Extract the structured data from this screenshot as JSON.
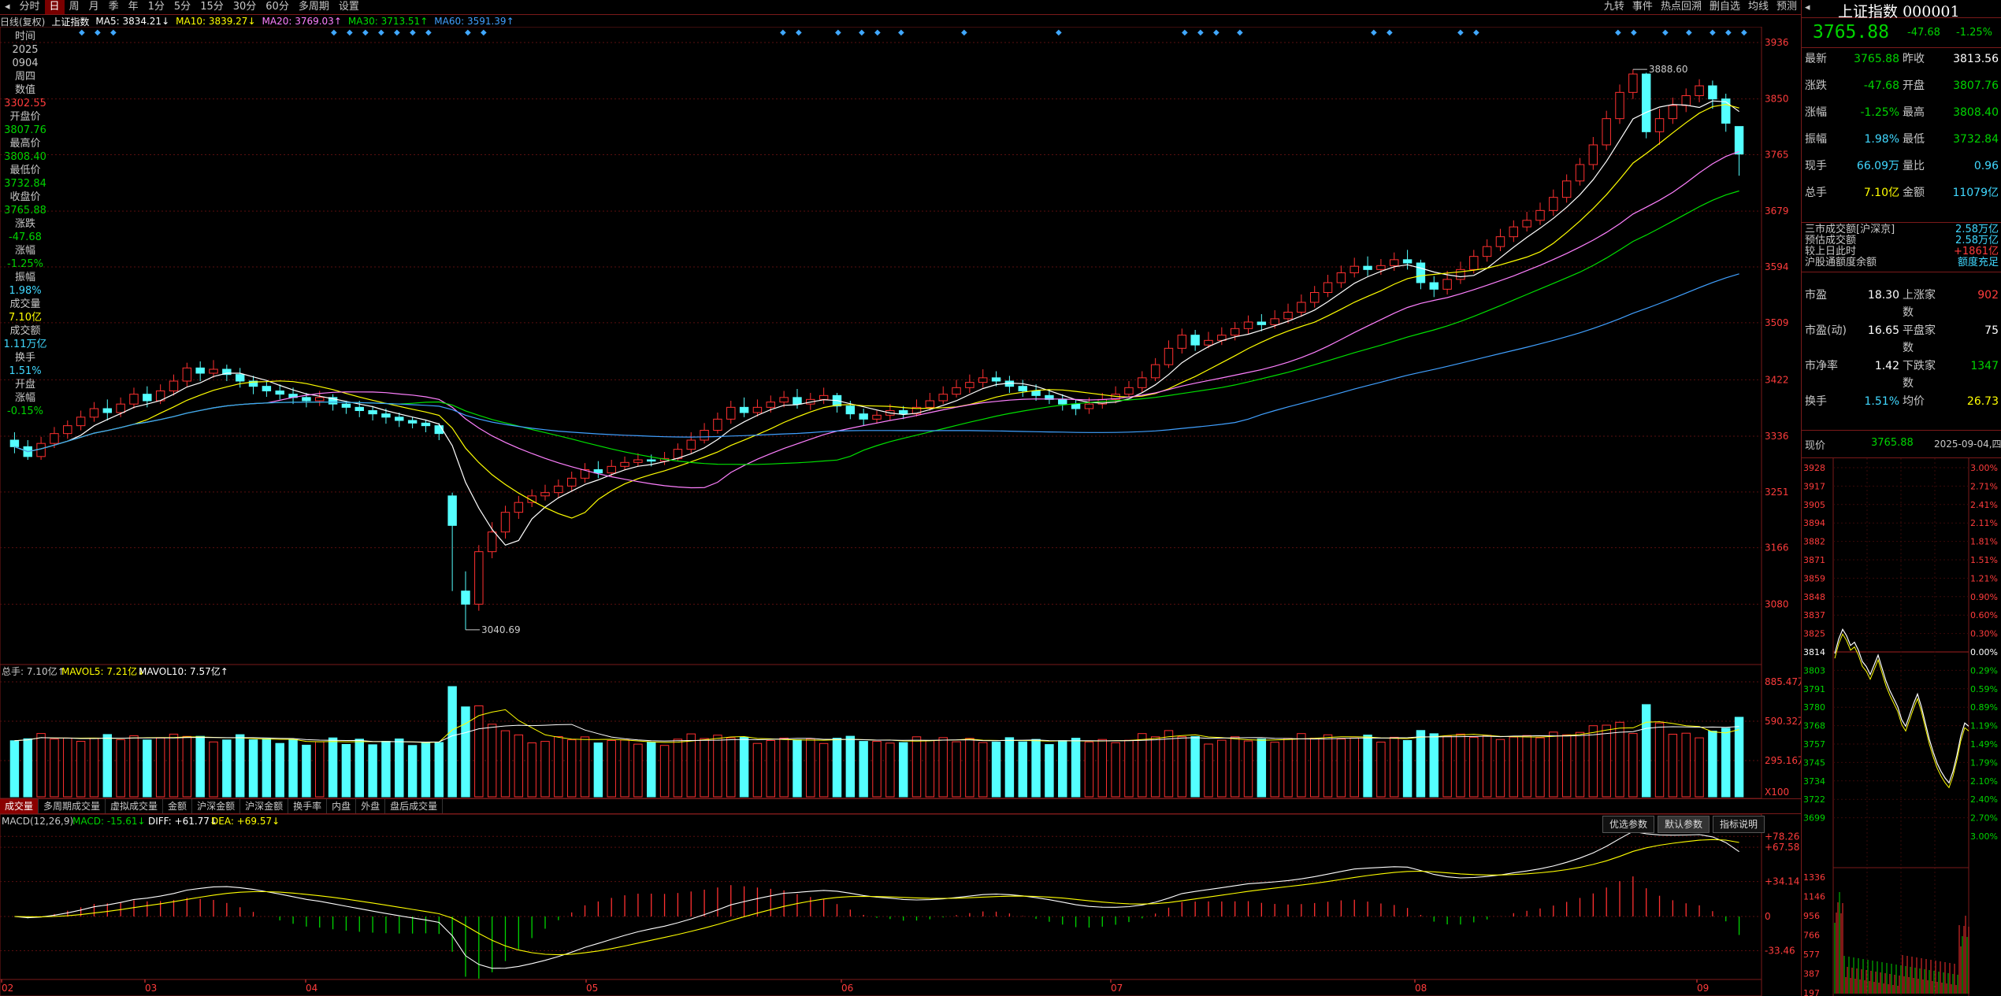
{
  "toolbar": {
    "items": [
      "分时",
      "日",
      "周",
      "月",
      "季",
      "年",
      "1分",
      "5分",
      "15分",
      "30分",
      "60分",
      "多周期",
      "设置"
    ],
    "active_index": 1,
    "right_items": [
      "九转",
      "事件",
      "热点回溯",
      "删自选",
      "均线",
      "预测"
    ]
  },
  "chart_title": {
    "period": "日线(复权)",
    "name": "上证指数",
    "ma": [
      {
        "label": "MA5: 3834.21",
        "arrow": "↓",
        "color": "#ffffff"
      },
      {
        "label": "MA10: 3839.27",
        "arrow": "↓",
        "color": "#ffff00"
      },
      {
        "label": "MA20: 3769.03",
        "arrow": "↑",
        "color": "#ff80ff"
      },
      {
        "label": "MA30: 3713.51",
        "arrow": "↑",
        "color": "#00e000"
      },
      {
        "label": "MA60: 3591.39",
        "arrow": "↑",
        "color": "#40a0ff"
      }
    ]
  },
  "left_info": [
    {
      "t": "时间",
      "c": "#c8c8c8"
    },
    {
      "t": "2025",
      "c": "#c8c8c8"
    },
    {
      "t": "0904",
      "c": "#c8c8c8"
    },
    {
      "t": "周四",
      "c": "#c8c8c8"
    },
    {
      "t": "数值",
      "c": "#c8c8c8"
    },
    {
      "t": "3302.55",
      "c": "#ff3c3c"
    },
    {
      "t": "开盘价",
      "c": "#c8c8c8"
    },
    {
      "t": "3807.76",
      "c": "#00d400"
    },
    {
      "t": "最高价",
      "c": "#c8c8c8"
    },
    {
      "t": "3808.40",
      "c": "#00d400"
    },
    {
      "t": "最低价",
      "c": "#c8c8c8"
    },
    {
      "t": "3732.84",
      "c": "#00d400"
    },
    {
      "t": "收盘价",
      "c": "#c8c8c8"
    },
    {
      "t": "3765.88",
      "c": "#00d400"
    },
    {
      "t": "涨跌",
      "c": "#c8c8c8"
    },
    {
      "t": "-47.68",
      "c": "#00d400"
    },
    {
      "t": "涨幅",
      "c": "#c8c8c8"
    },
    {
      "t": "-1.25%",
      "c": "#00d400"
    },
    {
      "t": "振幅",
      "c": "#c8c8c8"
    },
    {
      "t": "1.98%",
      "c": "#40d8ff"
    },
    {
      "t": "成交量",
      "c": "#c8c8c8"
    },
    {
      "t": "7.10亿",
      "c": "#ffff00"
    },
    {
      "t": "成交额",
      "c": "#c8c8c8"
    },
    {
      "t": "1.11万亿",
      "c": "#40d8ff"
    },
    {
      "t": "换手",
      "c": "#c8c8c8"
    },
    {
      "t": "1.51%",
      "c": "#40d8ff"
    },
    {
      "t": "开盘",
      "c": "#c8c8c8"
    },
    {
      "t": "涨幅",
      "c": "#c8c8c8"
    },
    {
      "t": "-0.15%",
      "c": "#00d400"
    }
  ],
  "price_axis": [
    "3936",
    "3850",
    "3765",
    "3679",
    "3594",
    "3509",
    "3422",
    "3336",
    "3251",
    "3166",
    "3080"
  ],
  "annotations": {
    "high": "3888.60",
    "low": "3040.69"
  },
  "volume": {
    "title": "总手: 7.10亿↑",
    "mavol5": "MAVOL5: 7.21亿↓",
    "mavol10": "MAVOL10: 7.57亿↑",
    "axis": [
      "885.47万",
      "590.32万",
      "295.16万",
      "X100"
    ]
  },
  "indicator_tabs": [
    "成交量",
    "多周期成交量",
    "虚拟成交量",
    "金额",
    "沪深金额",
    "沪深金额",
    "换手率",
    "内盘",
    "外盘",
    "盘后成交量"
  ],
  "macd": {
    "title": "MACD(12,26,9)",
    "macd": "MACD: -15.61↓",
    "diff": "DIFF: +61.77↓",
    "dea": "DEA: +69.57↓",
    "axis": [
      "+78.26",
      "+67.58",
      "+34.14",
      "0",
      "-33.46"
    ],
    "buttons": [
      "优选参数",
      "默认参数",
      "指标说明"
    ]
  },
  "x_labels": [
    "02",
    "03",
    "04",
    "05",
    "06",
    "07",
    "08",
    "09"
  ],
  "right_panel": {
    "title": "上证指数",
    "code": "000001",
    "price": "3765.88",
    "change": "-47.68",
    "pct": "-1.25%",
    "rows": [
      {
        "k": "最新",
        "v1": "3765.88",
        "c1": "#00d400",
        "k2": "昨收",
        "v2": "3813.56",
        "c2": "#ffffff"
      },
      {
        "k": "涨跌",
        "v1": "-47.68",
        "c1": "#00d400",
        "k2": "开盘",
        "v2": "3807.76",
        "c2": "#00d400"
      },
      {
        "k": "涨幅",
        "v1": "-1.25%",
        "c1": "#00d400",
        "k2": "最高",
        "v2": "3808.40",
        "c2": "#00d400"
      },
      {
        "k": "振幅",
        "v1": "1.98%",
        "c1": "#40d8ff",
        "k2": "最低",
        "v2": "3732.84",
        "c2": "#00d400"
      },
      {
        "k": "现手",
        "v1": "66.09万",
        "c1": "#40d8ff",
        "k2": "量比",
        "v2": "0.96",
        "c2": "#40d8ff"
      },
      {
        "k": "总手",
        "v1": "7.10亿",
        "c1": "#ffff00",
        "k2": "金额",
        "v2": "11079亿",
        "c2": "#40d8ff"
      }
    ],
    "turnover": [
      {
        "k": "三市成交额[沪深京]",
        "v": "2.58万亿",
        "c": "#40d8ff"
      },
      {
        "k": "预估成交额",
        "v": "2.58万亿",
        "c": "#40d8ff"
      },
      {
        "k": "较上日此时",
        "v": "+1861亿",
        "c": "#ff3c3c"
      },
      {
        "k": "沪股通额度余额",
        "v": "额度充足",
        "c": "#40d8ff"
      }
    ],
    "rows2": [
      {
        "k": "市盈",
        "v1": "18.30",
        "k2": "上涨家数",
        "v2": "902",
        "c2": "#ff3c3c"
      },
      {
        "k": "市盈(动)",
        "v1": "16.65",
        "k2": "平盘家数",
        "v2": "75",
        "c2": "#ffffff"
      },
      {
        "k": "市净率",
        "v1": "1.42",
        "k2": "下跌家数",
        "v2": "1347",
        "c2": "#00d400"
      },
      {
        "k": "换手",
        "v1": "1.51%",
        "k2": "均价",
        "v2": "26.73",
        "c2": "#ffff00"
      }
    ],
    "mini": {
      "label": "现价",
      "price": "3765.88",
      "date": "2025-09-04,四",
      "left_axis": [
        "3928",
        "3917",
        "3905",
        "3894",
        "3882",
        "3871",
        "3859",
        "3848",
        "3837",
        "3825",
        "3814",
        "3803",
        "3791",
        "3780",
        "3768",
        "3757",
        "3745",
        "3734",
        "3722",
        "3699"
      ],
      "right_axis": [
        "3.00%",
        "2.71%",
        "2.41%",
        "2.11%",
        "1.81%",
        "1.51%",
        "1.21%",
        "0.90%",
        "0.60%",
        "0.30%",
        "0.00%",
        "0.29%",
        "0.59%",
        "0.89%",
        "1.19%",
        "1.49%",
        "1.79%",
        "2.10%",
        "2.40%",
        "2.70%",
        "3.00%"
      ],
      "vol_axis": [
        "1336",
        "1146",
        "956",
        "766",
        "577",
        "387",
        "197"
      ]
    }
  },
  "chart_data": {
    "type": "candlestick",
    "title": "上证指数",
    "ylim": [
      3000,
      3960
    ],
    "x_months": [
      "02",
      "03",
      "04",
      "05",
      "06",
      "07",
      "08",
      "09"
    ],
    "candles": [
      [
        3330,
        3320,
        3342,
        3310
      ],
      [
        3320,
        3305,
        3330,
        3300
      ],
      [
        3305,
        3325,
        3335,
        3300
      ],
      [
        3325,
        3340,
        3350,
        3318
      ],
      [
        3340,
        3352,
        3360,
        3332
      ],
      [
        3352,
        3365,
        3375,
        3345
      ],
      [
        3365,
        3378,
        3388,
        3358
      ],
      [
        3378,
        3372,
        3392,
        3360
      ],
      [
        3372,
        3385,
        3395,
        3365
      ],
      [
        3385,
        3400,
        3410,
        3378
      ],
      [
        3400,
        3390,
        3412,
        3380
      ],
      [
        3390,
        3405,
        3415,
        3385
      ],
      [
        3405,
        3420,
        3430,
        3398
      ],
      [
        3420,
        3440,
        3448,
        3412
      ],
      [
        3440,
        3432,
        3450,
        3420
      ],
      [
        3432,
        3438,
        3452,
        3425
      ],
      [
        3438,
        3430,
        3445,
        3420
      ],
      [
        3430,
        3420,
        3440,
        3410
      ],
      [
        3420,
        3412,
        3428,
        3400
      ],
      [
        3412,
        3405,
        3420,
        3396
      ],
      [
        3405,
        3400,
        3415,
        3392
      ],
      [
        3400,
        3395,
        3410,
        3385
      ],
      [
        3395,
        3390,
        3402,
        3380
      ],
      [
        3390,
        3395,
        3405,
        3382
      ],
      [
        3395,
        3385,
        3400,
        3375
      ],
      [
        3385,
        3380,
        3390,
        3370
      ],
      [
        3380,
        3375,
        3390,
        3365
      ],
      [
        3375,
        3370,
        3382,
        3360
      ],
      [
        3370,
        3365,
        3378,
        3355
      ],
      [
        3365,
        3360,
        3372,
        3350
      ],
      [
        3360,
        3356,
        3365,
        3348
      ],
      [
        3356,
        3352,
        3360,
        3342
      ],
      [
        3352,
        3340,
        3356,
        3330
      ],
      [
        3245,
        3200,
        3250,
        3100
      ],
      [
        3100,
        3080,
        3130,
        3041
      ],
      [
        3080,
        3160,
        3170,
        3070
      ],
      [
        3160,
        3190,
        3205,
        3150
      ],
      [
        3190,
        3220,
        3230,
        3180
      ],
      [
        3220,
        3235,
        3245,
        3210
      ],
      [
        3235,
        3245,
        3255,
        3228
      ],
      [
        3245,
        3250,
        3262,
        3238
      ],
      [
        3250,
        3260,
        3270,
        3242
      ],
      [
        3260,
        3272,
        3282,
        3252
      ],
      [
        3272,
        3285,
        3295,
        3265
      ],
      [
        3285,
        3280,
        3298,
        3272
      ],
      [
        3280,
        3290,
        3300,
        3275
      ],
      [
        3290,
        3296,
        3305,
        3285
      ],
      [
        3296,
        3300,
        3310,
        3290
      ],
      [
        3300,
        3298,
        3308,
        3290
      ],
      [
        3298,
        3302,
        3312,
        3292
      ],
      [
        3302,
        3316,
        3325,
        3298
      ],
      [
        3316,
        3330,
        3342,
        3310
      ],
      [
        3330,
        3345,
        3356,
        3325
      ],
      [
        3345,
        3362,
        3372,
        3340
      ],
      [
        3362,
        3380,
        3390,
        3355
      ],
      [
        3380,
        3372,
        3395,
        3365
      ],
      [
        3372,
        3380,
        3392,
        3366
      ],
      [
        3380,
        3388,
        3398,
        3372
      ],
      [
        3388,
        3395,
        3405,
        3380
      ],
      [
        3395,
        3385,
        3408,
        3378
      ],
      [
        3385,
        3392,
        3402,
        3376
      ],
      [
        3392,
        3398,
        3410,
        3385
      ],
      [
        3398,
        3382,
        3402,
        3372
      ],
      [
        3382,
        3370,
        3390,
        3362
      ],
      [
        3370,
        3362,
        3378,
        3352
      ],
      [
        3362,
        3368,
        3375,
        3355
      ],
      [
        3368,
        3375,
        3385,
        3360
      ],
      [
        3375,
        3370,
        3382,
        3362
      ],
      [
        3370,
        3380,
        3392,
        3366
      ],
      [
        3380,
        3390,
        3402,
        3375
      ],
      [
        3390,
        3400,
        3412,
        3385
      ],
      [
        3400,
        3410,
        3422,
        3395
      ],
      [
        3410,
        3418,
        3430,
        3402
      ],
      [
        3418,
        3425,
        3438,
        3410
      ],
      [
        3425,
        3420,
        3435,
        3412
      ],
      [
        3420,
        3412,
        3428,
        3402
      ],
      [
        3412,
        3405,
        3422,
        3396
      ],
      [
        3405,
        3398,
        3415,
        3390
      ],
      [
        3398,
        3392,
        3408,
        3385
      ],
      [
        3392,
        3385,
        3400,
        3375
      ],
      [
        3385,
        3378,
        3392,
        3368
      ],
      [
        3378,
        3385,
        3395,
        3370
      ],
      [
        3385,
        3392,
        3402,
        3378
      ],
      [
        3392,
        3400,
        3412,
        3386
      ],
      [
        3400,
        3410,
        3420,
        3395
      ],
      [
        3410,
        3425,
        3435,
        3402
      ],
      [
        3425,
        3445,
        3455,
        3420
      ],
      [
        3445,
        3470,
        3482,
        3440
      ],
      [
        3470,
        3490,
        3500,
        3462
      ],
      [
        3490,
        3475,
        3498,
        3466
      ],
      [
        3475,
        3482,
        3495,
        3470
      ],
      [
        3482,
        3490,
        3502,
        3475
      ],
      [
        3490,
        3500,
        3510,
        3482
      ],
      [
        3500,
        3510,
        3520,
        3492
      ],
      [
        3510,
        3506,
        3522,
        3496
      ],
      [
        3506,
        3515,
        3528,
        3500
      ],
      [
        3515,
        3525,
        3538,
        3508
      ],
      [
        3525,
        3540,
        3552,
        3518
      ],
      [
        3540,
        3555,
        3565,
        3532
      ],
      [
        3555,
        3570,
        3582,
        3548
      ],
      [
        3570,
        3585,
        3596,
        3562
      ],
      [
        3585,
        3595,
        3608,
        3578
      ],
      [
        3595,
        3590,
        3610,
        3580
      ],
      [
        3590,
        3596,
        3606,
        3582
      ],
      [
        3596,
        3605,
        3616,
        3588
      ],
      [
        3605,
        3600,
        3620,
        3590
      ],
      [
        3600,
        3570,
        3605,
        3560
      ],
      [
        3570,
        3560,
        3580,
        3548
      ],
      [
        3560,
        3575,
        3588,
        3552
      ],
      [
        3575,
        3590,
        3602,
        3568
      ],
      [
        3590,
        3610,
        3620,
        3584
      ],
      [
        3610,
        3625,
        3636,
        3602
      ],
      [
        3625,
        3640,
        3652,
        3618
      ],
      [
        3640,
        3655,
        3665,
        3632
      ],
      [
        3655,
        3665,
        3678,
        3648
      ],
      [
        3665,
        3680,
        3692,
        3658
      ],
      [
        3680,
        3700,
        3712,
        3672
      ],
      [
        3700,
        3725,
        3735,
        3692
      ],
      [
        3725,
        3750,
        3760,
        3718
      ],
      [
        3750,
        3780,
        3792,
        3742
      ],
      [
        3780,
        3820,
        3832,
        3772
      ],
      [
        3820,
        3860,
        3872,
        3812
      ],
      [
        3860,
        3888,
        3895,
        3850
      ],
      [
        3888,
        3800,
        3890,
        3790
      ],
      [
        3800,
        3820,
        3835,
        3780
      ],
      [
        3820,
        3840,
        3852,
        3812
      ],
      [
        3840,
        3855,
        3866,
        3830
      ],
      [
        3855,
        3870,
        3880,
        3845
      ],
      [
        3870,
        3850,
        3878,
        3835
      ],
      [
        3850,
        3813,
        3858,
        3800
      ],
      [
        3808,
        3766,
        3808,
        3733
      ]
    ]
  }
}
